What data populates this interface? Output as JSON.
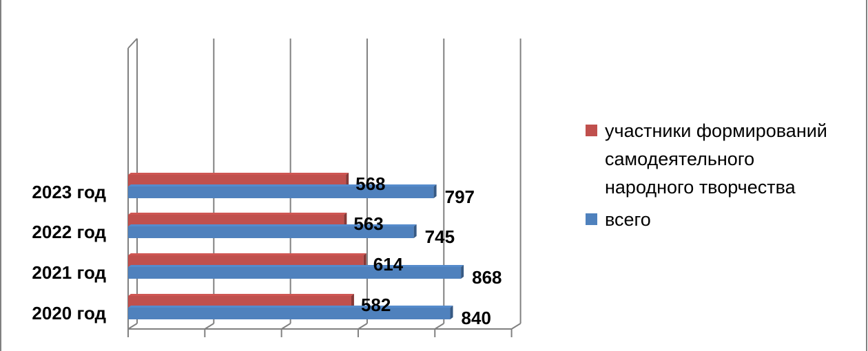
{
  "chart_data": {
    "type": "bar",
    "orientation": "horizontal",
    "title": "",
    "categories": [
      "2023 год",
      "2022 год",
      "2021 год",
      "2020 год"
    ],
    "series": [
      {
        "name": "участники формирований самодеятельного народного творчества",
        "values": [
          568,
          563,
          614,
          582
        ],
        "color": "#c0504d"
      },
      {
        "name": "всего",
        "values": [
          797,
          745,
          868,
          840
        ],
        "color": "#4f81bd"
      }
    ],
    "xlim": [
      0,
      1000
    ],
    "grid": true,
    "legend": "right"
  },
  "legend": {
    "items": [
      {
        "label_lines": [
          "участники формирований",
          "самодеятельного",
          "народного творчества"
        ],
        "color": "#c0504d"
      },
      {
        "label_lines": [
          "всего"
        ],
        "color": "#4f81bd"
      }
    ]
  }
}
